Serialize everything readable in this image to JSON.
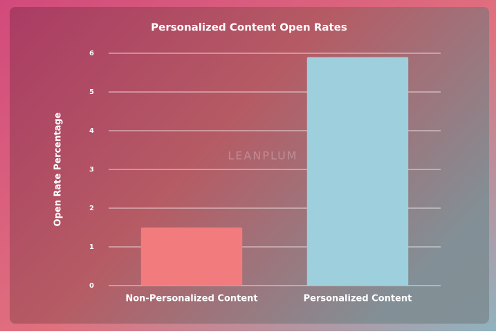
{
  "chart_data": {
    "type": "bar",
    "title": "Personalized Content Open Rates",
    "y_label": "Open Rate Percentage",
    "watermark": "LEANPLUM",
    "categories": [
      "Non-Personalized Content",
      "Personalized Content"
    ],
    "values": [
      1.5,
      5.9
    ],
    "colors": [
      "#f27b7d",
      "#9dcfdc"
    ],
    "ylim": [
      0,
      6
    ],
    "yticks": [
      0,
      1,
      2,
      3,
      4,
      5,
      6
    ],
    "grid": true
  }
}
